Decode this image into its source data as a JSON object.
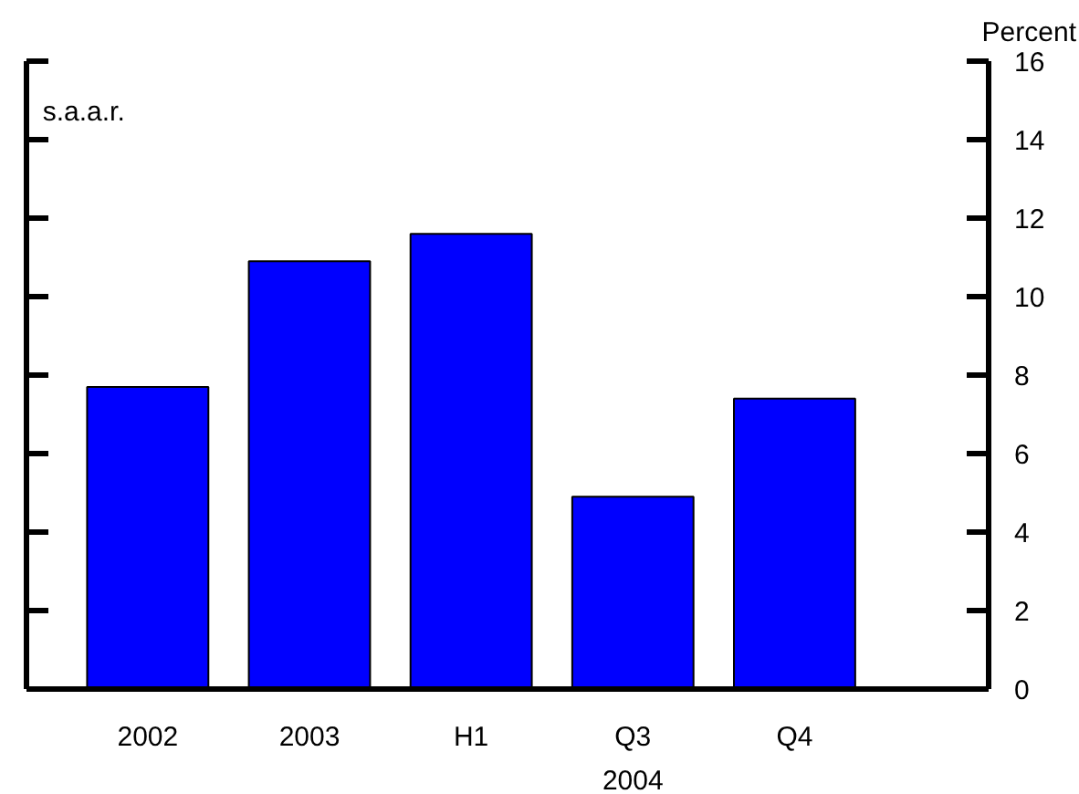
{
  "chart_data": {
    "type": "bar",
    "ylabel": "Percent",
    "categories": [
      "2002",
      "2003",
      "H1",
      "Q3",
      "Q4"
    ],
    "values": [
      7.7,
      10.9,
      11.6,
      4.9,
      7.4
    ],
    "color": "#0000ff",
    "ylim": [
      0,
      16
    ],
    "yticks": [
      0,
      2,
      4,
      6,
      8,
      10,
      12,
      14,
      16
    ],
    "grid": false,
    "annotations": [
      "s.a.a.r.",
      "2004"
    ]
  }
}
